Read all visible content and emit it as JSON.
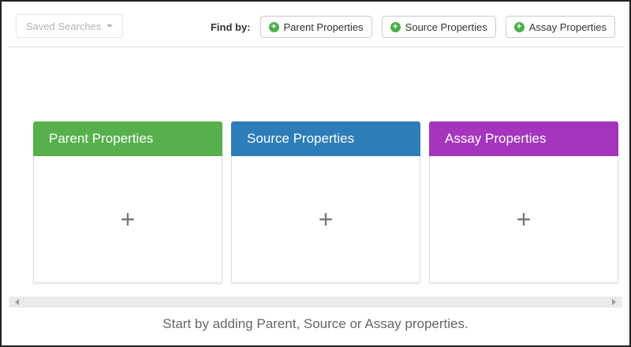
{
  "toolbar": {
    "saved_searches_label": "Saved Searches",
    "find_by_label": "Find by:",
    "add_buttons": [
      {
        "label": "Parent Properties",
        "icon": "plus-circle-icon",
        "icon_symbol": "+"
      },
      {
        "label": "Source Properties",
        "icon": "plus-circle-icon",
        "icon_symbol": "+"
      },
      {
        "label": "Assay Properties",
        "icon": "plus-circle-icon",
        "icon_symbol": "+"
      }
    ]
  },
  "panels": [
    {
      "title": "Parent Properties",
      "header_color": "#56b14c",
      "add_symbol": "+"
    },
    {
      "title": "Source Properties",
      "header_color": "#2d7db9",
      "add_symbol": "+"
    },
    {
      "title": "Assay Properties",
      "header_color": "#a435bc",
      "add_symbol": "+"
    }
  ],
  "footer": {
    "message": "Start by adding Parent, Source or Assay properties."
  },
  "colors": {
    "add_button_icon_green": "#4cae4c",
    "divider": "#dddddd",
    "panel_plus_gray": "#777777",
    "footer_text": "#666666"
  }
}
